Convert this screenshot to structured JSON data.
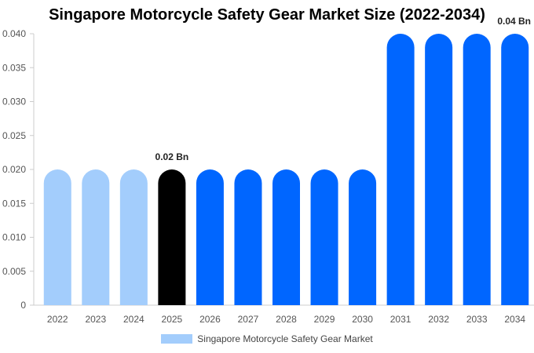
{
  "chart_data": {
    "type": "bar",
    "title": "Singapore Motorcycle Safety Gear Market Size (2022-2034)",
    "categories": [
      "2022",
      "2023",
      "2024",
      "2025",
      "2026",
      "2027",
      "2028",
      "2029",
      "2030",
      "2031",
      "2032",
      "2033",
      "2034"
    ],
    "series": [
      {
        "name": "Singapore Motorcycle Safety Gear Market",
        "values": [
          0.02,
          0.02,
          0.02,
          0.02,
          0.02,
          0.02,
          0.02,
          0.02,
          0.02,
          0.04,
          0.04,
          0.04,
          0.04
        ]
      }
    ],
    "ylim": [
      0,
      0.04
    ],
    "yticks": [
      "0",
      "0.005",
      "0.010",
      "0.015",
      "0.020",
      "0.025",
      "0.030",
      "0.035",
      "0.040"
    ],
    "data_labels": [
      {
        "category": "2025",
        "text": "0.02 Bn"
      },
      {
        "category": "2034",
        "text": "0.04 Bn"
      }
    ],
    "bar_colors": {
      "historical": "#a3cdfc",
      "current": "#000000",
      "forecast": "#0066ff"
    },
    "bar_color_groups": [
      "historical",
      "historical",
      "historical",
      "current",
      "forecast",
      "forecast",
      "forecast",
      "forecast",
      "forecast",
      "forecast",
      "forecast",
      "forecast",
      "forecast"
    ],
    "legend": {
      "label": "Singapore Motorcycle Safety Gear Market",
      "color": "#a3cdfc",
      "position": "bottom"
    },
    "grid": false
  }
}
